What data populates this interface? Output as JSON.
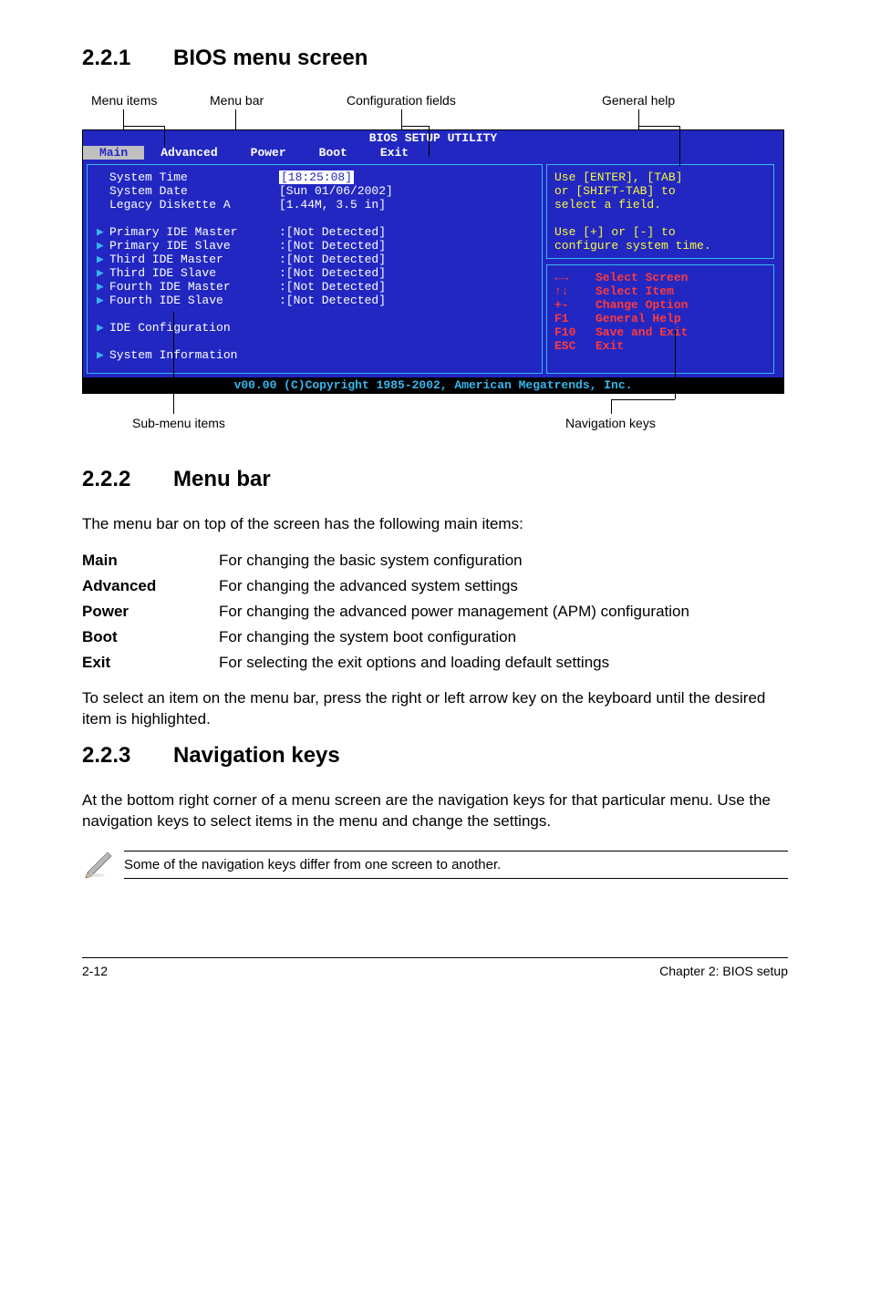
{
  "sections": {
    "s1": {
      "num": "2.2.1",
      "title": "BIOS menu screen"
    },
    "s2": {
      "num": "2.2.2",
      "title": "Menu bar"
    },
    "s3": {
      "num": "2.2.3",
      "title": "Navigation keys"
    }
  },
  "callouts": {
    "menu_items": "Menu items",
    "menu_bar": "Menu bar",
    "config_fields": "Configuration fields",
    "general_help": "General help",
    "sub_menu": "Sub-menu items",
    "nav_keys": "Navigation keys"
  },
  "bios": {
    "title": "BIOS SETUP UTILITY",
    "menu": [
      "Main",
      "Advanced",
      "Power",
      "Boot",
      "Exit"
    ],
    "menu_selected": 0,
    "left_rows": [
      {
        "k": "System Time",
        "v": "[18:25:08]",
        "sel": true
      },
      {
        "k": "System Date",
        "v": "[Sun 01/06/2002]"
      },
      {
        "k": "Legacy Diskette A",
        "v": "[1.44M, 3.5 in]"
      },
      {
        "spacer": true
      },
      {
        "tri": true,
        "k": "Primary IDE Master",
        "v": ":[Not Detected]"
      },
      {
        "tri": true,
        "k": "Primary IDE Slave",
        "v": ":[Not Detected]"
      },
      {
        "tri": true,
        "k": "Third IDE Master",
        "v": ":[Not Detected]"
      },
      {
        "tri": true,
        "k": "Third IDE Slave",
        "v": ":[Not Detected]"
      },
      {
        "tri": true,
        "k": "Fourth IDE Master",
        "v": ":[Not Detected]"
      },
      {
        "tri": true,
        "k": "Fourth IDE Slave",
        "v": ":[Not Detected]"
      },
      {
        "spacer": true
      },
      {
        "tri": true,
        "k": "IDE Configuration"
      },
      {
        "spacer": true
      },
      {
        "tri": true,
        "k": "System Information"
      }
    ],
    "help_lines": [
      "Use [ENTER], [TAB]",
      "or [SHIFT-TAB] to",
      "select a field.",
      "",
      "Use [+] or [-] to",
      "configure system time."
    ],
    "nav_rows": [
      {
        "k": "←→",
        "v": "Select Screen",
        "red": true
      },
      {
        "k": "↑↓",
        "v": "Select Item",
        "red": true
      },
      {
        "k": "+-",
        "v": "Change Option",
        "red": true
      },
      {
        "k": "F1",
        "v": "General Help",
        "red": true
      },
      {
        "k": "F10",
        "v": "Save and Exit",
        "red": true
      },
      {
        "k": "ESC",
        "v": "Exit",
        "red": true
      }
    ],
    "footer": "v00.00 (C)Copyright 1985-2002, American Megatrends, Inc."
  },
  "menubar": {
    "intro": "The menu bar on top of the screen has the following main items:",
    "defs": [
      {
        "term": "Main",
        "desc": "For changing the basic system configuration"
      },
      {
        "term": "Advanced",
        "desc": "For changing the advanced system settings"
      },
      {
        "term": "Power",
        "desc": "For changing the advanced power management (APM) configuration"
      },
      {
        "term": "Boot",
        "desc": "For changing the system boot configuration"
      },
      {
        "term": "Exit",
        "desc": "For selecting the exit options and loading default settings"
      }
    ],
    "outro": "To select an item on the menu bar, press the right or left arrow key on the keyboard until the desired item is highlighted."
  },
  "navkeys": {
    "para": "At the bottom right corner of a menu screen are the navigation keys for that particular menu. Use the navigation keys to select items in the menu and change the settings.",
    "note": "Some of the navigation keys differ from one screen to another."
  },
  "footer": {
    "left": "2-12",
    "right": "Chapter 2: BIOS setup"
  },
  "colors": {
    "bios_bg": "#2227c2",
    "bios_border": "#36b7ee",
    "yellow": "#f9f93a",
    "red": "#ff3a3a"
  }
}
